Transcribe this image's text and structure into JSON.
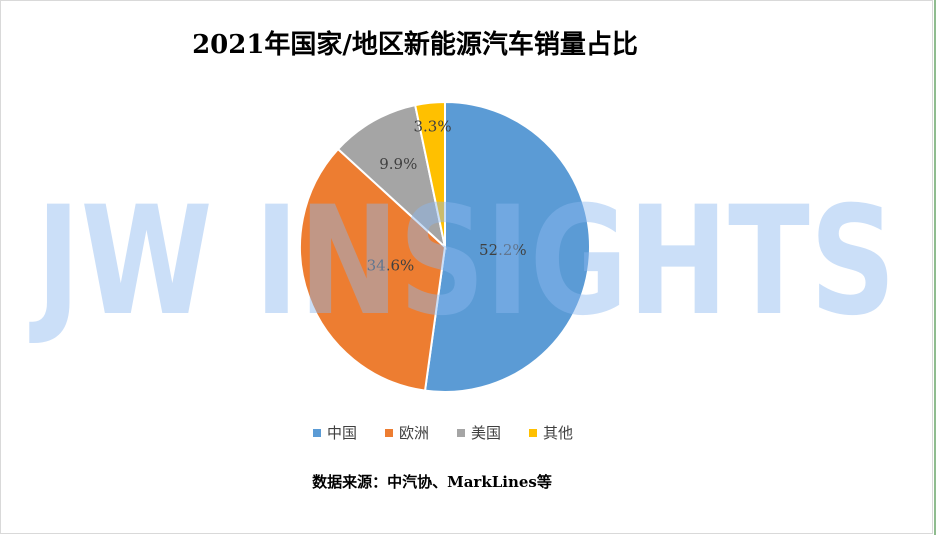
{
  "chart_data": {
    "type": "pie",
    "title": "2021年国家/地区新能源汽车销量占比",
    "categories": [
      "中国",
      "欧洲",
      "美国",
      "其他"
    ],
    "values": [
      52.2,
      34.6,
      9.9,
      3.3
    ],
    "value_labels": [
      "52.2%",
      "34.6%",
      "9.9%",
      "3.3%"
    ],
    "colors": [
      "#5b9bd5",
      "#ed7d31",
      "#a5a5a5",
      "#ffc000"
    ],
    "legend": "bottom",
    "source": "数据来源：中汽协、MarkLines等",
    "watermark": "JW INSIGHTS"
  }
}
